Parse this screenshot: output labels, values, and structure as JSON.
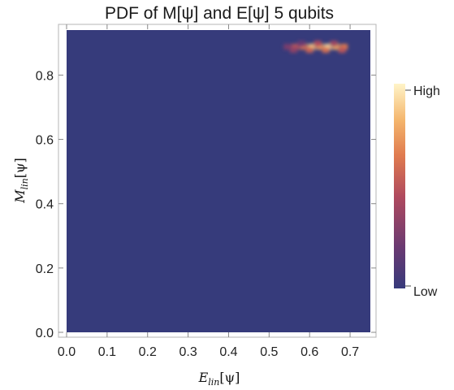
{
  "chart_data": {
    "type": "heatmap",
    "title": "PDF of M[ψ] and E[ψ] 5 qubits",
    "xlabel": {
      "base": "E",
      "sub": "lin",
      "arg": "[ψ]"
    },
    "ylabel": {
      "base": "M",
      "sub": "lin",
      "arg": "[ψ]"
    },
    "xlim": [
      0.0,
      0.75
    ],
    "ylim": [
      0.0,
      0.94
    ],
    "xticks": [
      0.0,
      0.1,
      0.2,
      0.3,
      0.4,
      0.5,
      0.6,
      0.7
    ],
    "yticks": [
      0.0,
      0.2,
      0.4,
      0.6,
      0.8
    ],
    "xtick_labels": [
      "0.0",
      "0.1",
      "0.2",
      "0.3",
      "0.4",
      "0.5",
      "0.6",
      "0.7"
    ],
    "ytick_labels": [
      "0.0",
      "0.2",
      "0.4",
      "0.6",
      "0.8"
    ],
    "background_density": 0.0,
    "hotspots": [
      {
        "x": 0.545,
        "y": 0.888,
        "density": 0.25
      },
      {
        "x": 0.565,
        "y": 0.888,
        "density": 0.45
      },
      {
        "x": 0.585,
        "y": 0.888,
        "density": 0.55
      },
      {
        "x": 0.605,
        "y": 0.888,
        "density": 0.85
      },
      {
        "x": 0.625,
        "y": 0.888,
        "density": 0.7
      },
      {
        "x": 0.645,
        "y": 0.888,
        "density": 0.9
      },
      {
        "x": 0.665,
        "y": 0.888,
        "density": 0.75
      },
      {
        "x": 0.685,
        "y": 0.888,
        "density": 0.6
      },
      {
        "x": 0.56,
        "y": 0.878,
        "density": 0.3
      },
      {
        "x": 0.6,
        "y": 0.878,
        "density": 0.5
      },
      {
        "x": 0.64,
        "y": 0.878,
        "density": 0.55
      },
      {
        "x": 0.68,
        "y": 0.878,
        "density": 0.45
      },
      {
        "x": 0.62,
        "y": 0.898,
        "density": 0.4
      },
      {
        "x": 0.66,
        "y": 0.898,
        "density": 0.35
      },
      {
        "x": 0.58,
        "y": 0.898,
        "density": 0.2
      }
    ],
    "legend": {
      "type": "colorbar",
      "position": "right",
      "high_label": "High",
      "low_label": "Low",
      "colors": [
        "#373a7b",
        "#6a3a72",
        "#b04a5e",
        "#e07b4f",
        "#f4b56c",
        "#fff4c8"
      ]
    },
    "colors": {
      "low": "#363b7b",
      "frame": "#b5b5b5"
    }
  }
}
